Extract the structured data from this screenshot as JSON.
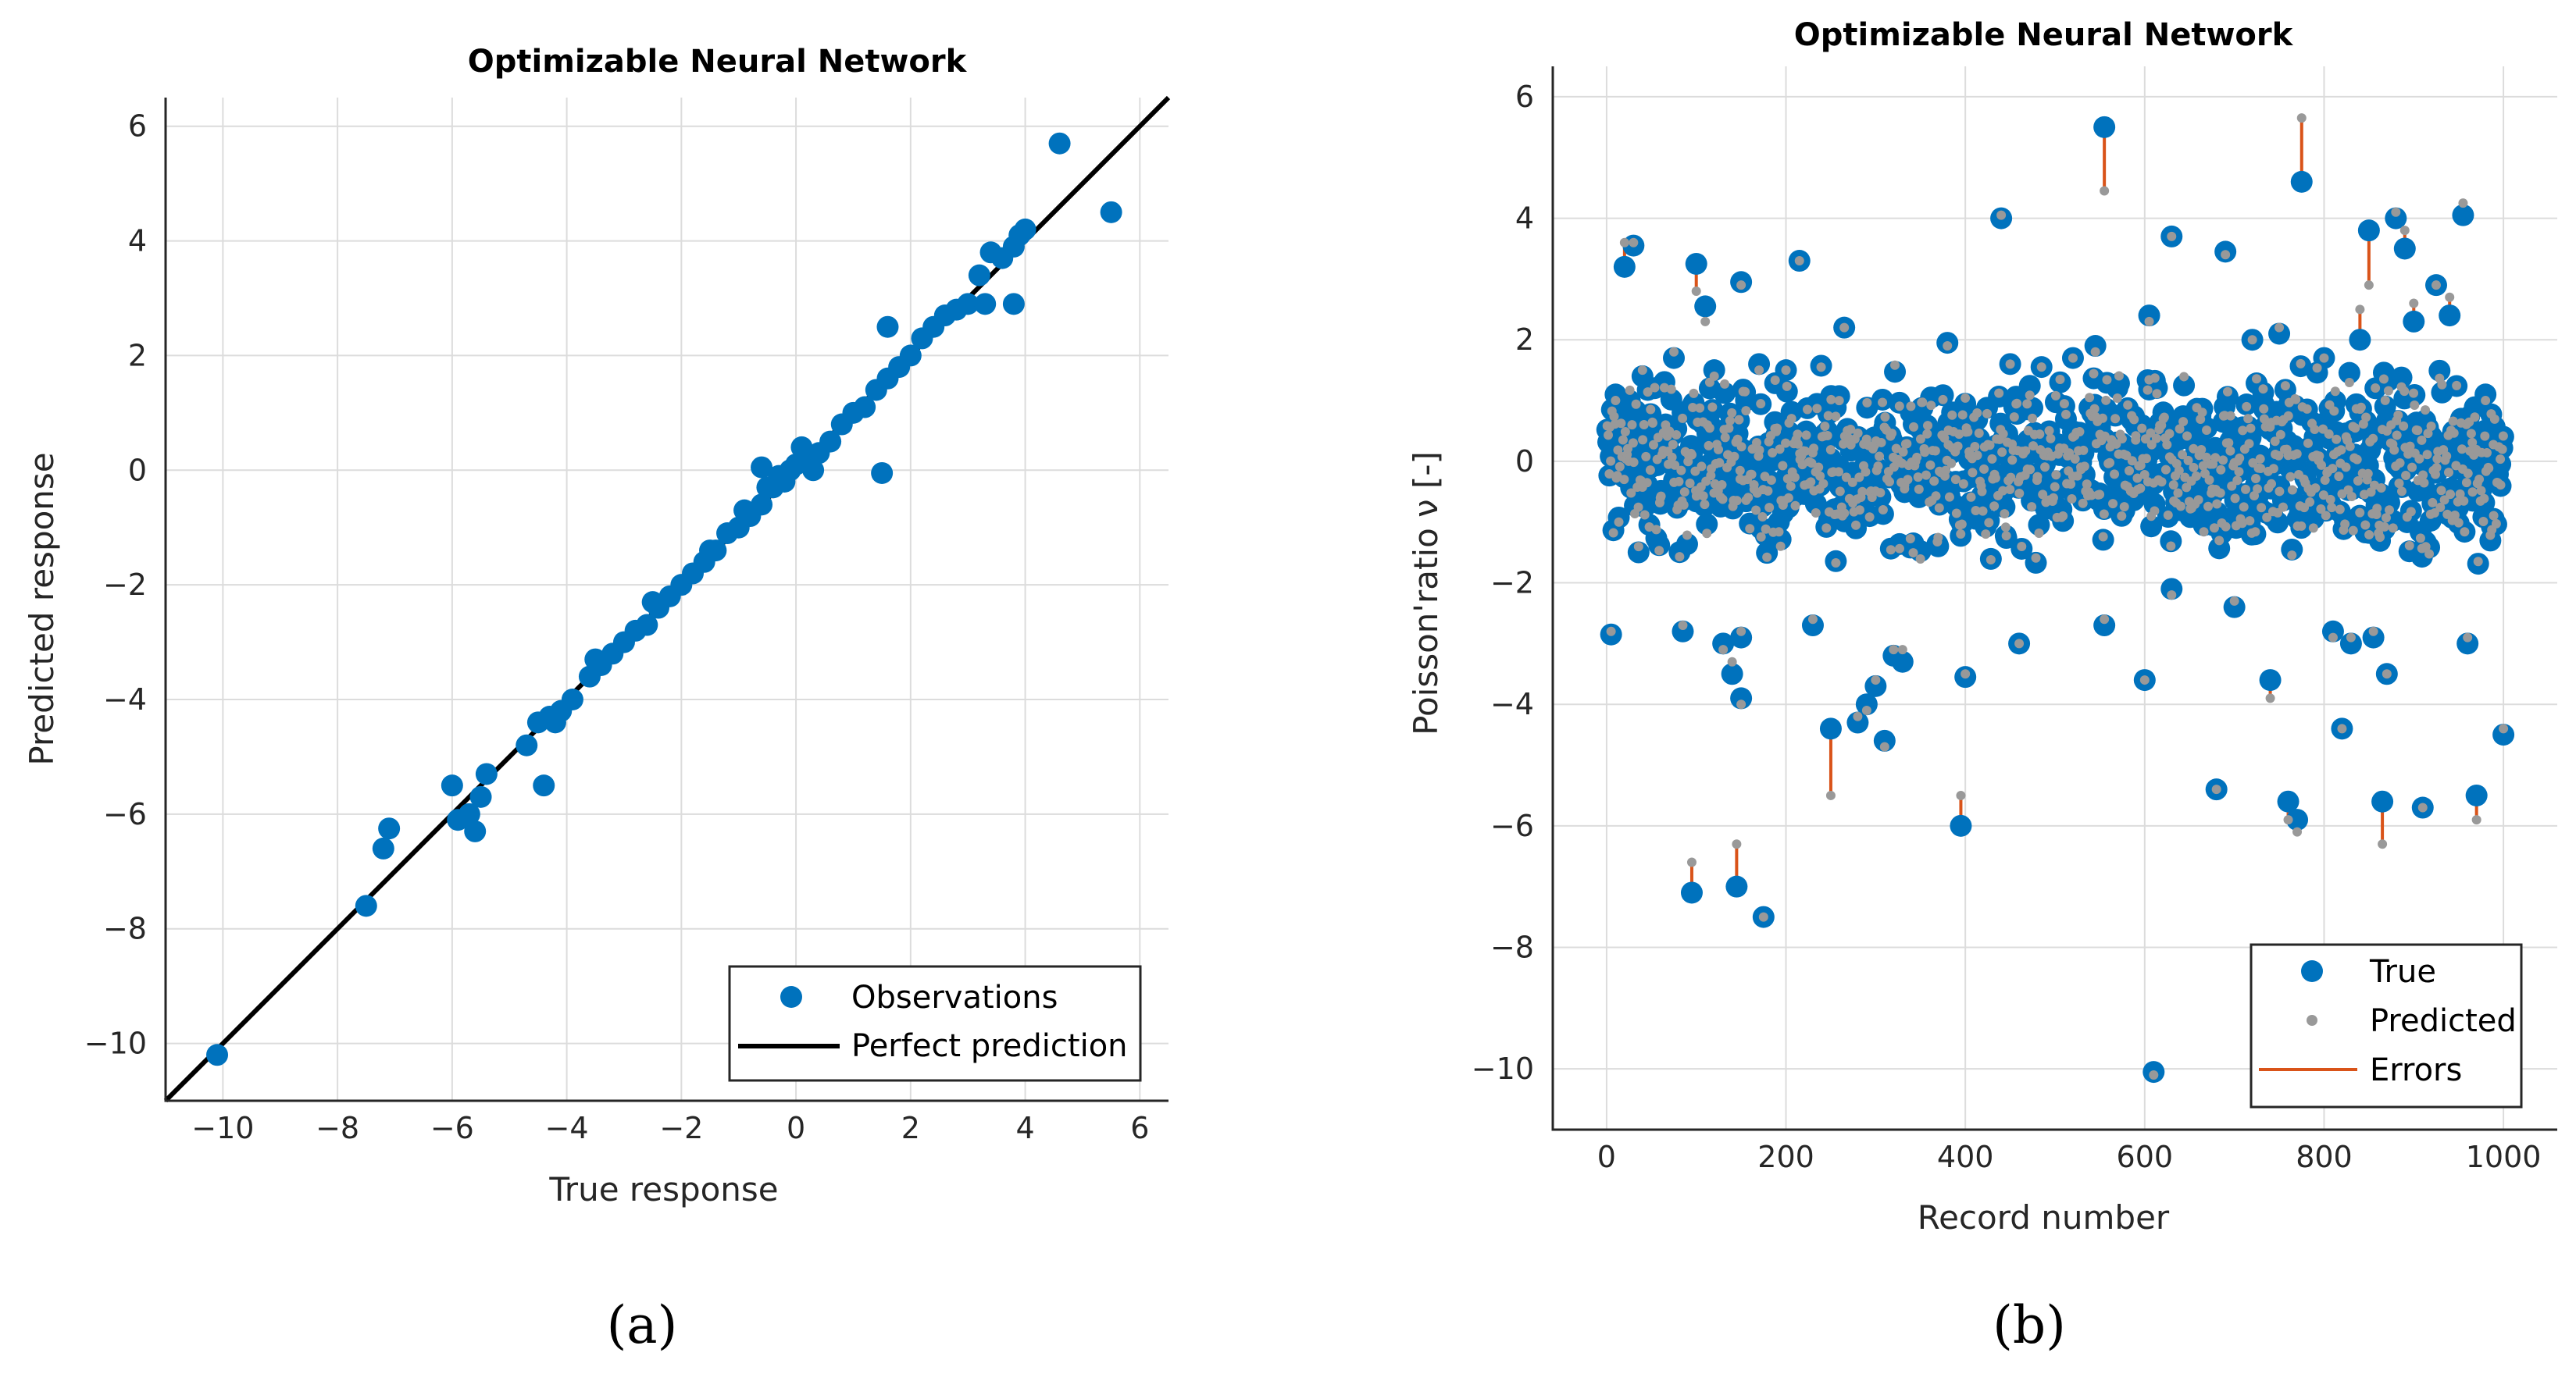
{
  "chart_data": [
    {
      "type": "scatter",
      "title": "Optimizable Neural Network",
      "xlabel": "True response",
      "ylabel": "Predicted response",
      "xlim": [
        -11,
        6.5
      ],
      "ylim": [
        -11,
        6.5
      ],
      "xticks": [
        -10,
        -8,
        -6,
        -4,
        -2,
        0,
        2,
        4,
        6
      ],
      "yticks": [
        -10,
        -8,
        -6,
        -4,
        -2,
        0,
        2,
        4,
        6
      ],
      "xtick_labels": [
        "−10",
        "−8",
        "−6",
        "−4",
        "−2",
        "0",
        "2",
        "4",
        "6"
      ],
      "ytick_labels": [
        "−10",
        "−8",
        "−6",
        "−4",
        "−2",
        "0",
        "2",
        "4",
        "6"
      ],
      "grid": true,
      "legend_position": "bottom-right",
      "legend": [
        "Observations",
        "Perfect prediction"
      ],
      "caption": "(a)",
      "colors": {
        "observations": "#0072BD",
        "line": "#000000"
      },
      "series": [
        {
          "name": "Observations",
          "points": [
            [
              -10.1,
              -10.2
            ],
            [
              -7.5,
              -7.6
            ],
            [
              -7.2,
              -6.6
            ],
            [
              -7.1,
              -6.25
            ],
            [
              -6.0,
              -5.5
            ],
            [
              -5.9,
              -6.1
            ],
            [
              -5.7,
              -6.0
            ],
            [
              -5.6,
              -6.3
            ],
            [
              -5.5,
              -5.7
            ],
            [
              -5.4,
              -5.3
            ],
            [
              -4.7,
              -4.8
            ],
            [
              -4.5,
              -4.4
            ],
            [
              -4.4,
              -5.5
            ],
            [
              -4.3,
              -4.3
            ],
            [
              -4.1,
              -4.2
            ],
            [
              -3.9,
              -4.0
            ],
            [
              -3.6,
              -3.6
            ],
            [
              -3.4,
              -3.4
            ],
            [
              -3.2,
              -3.2
            ],
            [
              -3.0,
              -3.0
            ],
            [
              -2.8,
              -2.8
            ],
            [
              -2.6,
              -2.7
            ],
            [
              -2.4,
              -2.4
            ],
            [
              -2.2,
              -2.2
            ],
            [
              -2.0,
              -2.0
            ],
            [
              -1.8,
              -1.8
            ],
            [
              -1.6,
              -1.6
            ],
            [
              -1.4,
              -1.4
            ],
            [
              -1.2,
              -1.1
            ],
            [
              -1.0,
              -1.0
            ],
            [
              -0.8,
              -0.8
            ],
            [
              -0.6,
              -0.6
            ],
            [
              -0.4,
              -0.3
            ],
            [
              -0.2,
              -0.2
            ],
            [
              -0.1,
              0.0
            ],
            [
              0.0,
              0.1
            ],
            [
              0.2,
              0.2
            ],
            [
              0.4,
              0.3
            ],
            [
              0.6,
              0.5
            ],
            [
              0.8,
              0.8
            ],
            [
              -0.5,
              -0.3
            ],
            [
              -0.3,
              -0.1
            ],
            [
              -0.6,
              0.05
            ],
            [
              0.1,
              0.4
            ],
            [
              0.3,
              0.0
            ],
            [
              -0.9,
              -0.7
            ],
            [
              -1.5,
              -1.4
            ],
            [
              -2.5,
              -2.3
            ],
            [
              -3.5,
              -3.3
            ],
            [
              -4.2,
              -4.4
            ],
            [
              1.0,
              1.0
            ],
            [
              1.2,
              1.1
            ],
            [
              1.4,
              1.4
            ],
            [
              1.6,
              1.6
            ],
            [
              1.8,
              1.8
            ],
            [
              2.0,
              2.0
            ],
            [
              2.2,
              2.3
            ],
            [
              2.4,
              2.5
            ],
            [
              2.6,
              2.7
            ],
            [
              2.8,
              2.8
            ],
            [
              1.6,
              2.5
            ],
            [
              1.5,
              -0.05
            ],
            [
              3.0,
              2.9
            ],
            [
              3.2,
              3.4
            ],
            [
              3.3,
              2.9
            ],
            [
              3.4,
              3.8
            ],
            [
              3.6,
              3.7
            ],
            [
              3.8,
              3.9
            ],
            [
              3.9,
              4.1
            ],
            [
              4.0,
              4.2
            ],
            [
              3.8,
              2.9
            ],
            [
              4.6,
              5.7
            ],
            [
              5.5,
              4.5
            ]
          ]
        },
        {
          "name": "Perfect prediction",
          "points": [
            [
              -11,
              -11
            ],
            [
              6.5,
              6.5
            ]
          ]
        }
      ]
    },
    {
      "type": "scatter",
      "title": "Optimizable Neural Network",
      "xlabel": "Record number",
      "ylabel": "Poisson'ratio ν [-]",
      "xlim": [
        -60,
        1060
      ],
      "ylim": [
        -11,
        6.5
      ],
      "xticks": [
        0,
        200,
        400,
        600,
        800,
        1000
      ],
      "yticks": [
        -10,
        -8,
        -6,
        -4,
        -2,
        0,
        2,
        4,
        6
      ],
      "xtick_labels": [
        "0",
        "200",
        "400",
        "600",
        "800",
        "1000"
      ],
      "ytick_labels": [
        "−10",
        "−8",
        "−6",
        "−4",
        "−2",
        "0",
        "2",
        "4",
        "6"
      ],
      "grid": true,
      "legend_position": "bottom-right",
      "legend": [
        "True",
        "Predicted",
        "Errors"
      ],
      "caption": "(b)",
      "colors": {
        "true": "#0072BD",
        "predicted": "#999999",
        "errors": "#D95319"
      },
      "series": [
        {
          "name": "True / Predicted (record, true, predicted)",
          "points": [
            [
              5,
              -2.85,
              -2.8
            ],
            [
              10,
              1.1,
              1.0
            ],
            [
              20,
              3.2,
              3.6
            ],
            [
              30,
              3.55,
              3.6
            ],
            [
              40,
              1.4,
              1.5
            ],
            [
              60,
              -0.7,
              -0.6
            ],
            [
              75,
              1.7,
              1.8
            ],
            [
              85,
              -2.8,
              -2.7
            ],
            [
              95,
              -7.1,
              -6.6
            ],
            [
              100,
              3.25,
              2.8
            ],
            [
              110,
              2.55,
              2.3
            ],
            [
              115,
              1.2,
              1.3
            ],
            [
              120,
              1.5,
              1.4
            ],
            [
              130,
              -3.0,
              -3.1
            ],
            [
              140,
              -3.5,
              -3.3
            ],
            [
              145,
              -7.0,
              -6.3
            ],
            [
              150,
              -2.9,
              -2.8
            ],
            [
              150,
              2.95,
              2.9
            ],
            [
              150,
              -3.9,
              -4.0
            ],
            [
              170,
              1.6,
              1.5
            ],
            [
              175,
              -7.5,
              -7.5
            ],
            [
              200,
              1.5,
              1.5
            ],
            [
              215,
              3.3,
              3.3
            ],
            [
              230,
              -2.7,
              -2.6
            ],
            [
              250,
              -4.4,
              -5.5
            ],
            [
              265,
              2.2,
              2.2
            ],
            [
              280,
              -4.3,
              -4.2
            ],
            [
              290,
              -4.0,
              -4.1
            ],
            [
              300,
              -3.7,
              -3.6
            ],
            [
              310,
              -4.6,
              -4.7
            ],
            [
              320,
              -3.2,
              -3.1
            ],
            [
              330,
              -3.3,
              -3.1
            ],
            [
              380,
              1.95,
              1.9
            ],
            [
              395,
              -6.0,
              -5.5
            ],
            [
              400,
              -3.55,
              -3.5
            ],
            [
              440,
              4.0,
              4.05
            ],
            [
              450,
              1.6,
              1.6
            ],
            [
              460,
              -3.0,
              -3.0
            ],
            [
              520,
              1.7,
              1.7
            ],
            [
              545,
              1.9,
              1.8
            ],
            [
              555,
              5.5,
              4.45
            ],
            [
              555,
              -2.7,
              -2.6
            ],
            [
              600,
              -3.6,
              -3.6
            ],
            [
              605,
              2.4,
              2.3
            ],
            [
              610,
              -10.05,
              -10.1
            ],
            [
              630,
              3.7,
              3.7
            ],
            [
              630,
              -2.1,
              -2.2
            ],
            [
              680,
              -5.4,
              -5.4
            ],
            [
              690,
              3.45,
              3.4
            ],
            [
              700,
              -2.4,
              -2.3
            ],
            [
              720,
              2.0,
              2.0
            ],
            [
              740,
              -3.6,
              -3.9
            ],
            [
              750,
              2.1,
              2.2
            ],
            [
              760,
              -5.6,
              -5.9
            ],
            [
              770,
              -5.9,
              -6.1
            ],
            [
              775,
              4.6,
              5.65
            ],
            [
              800,
              1.7,
              1.7
            ],
            [
              810,
              -2.8,
              -2.9
            ],
            [
              820,
              -4.4,
              -4.4
            ],
            [
              830,
              -3.0,
              -2.9
            ],
            [
              840,
              2.0,
              2.5
            ],
            [
              850,
              3.8,
              2.9
            ],
            [
              855,
              -2.9,
              -2.8
            ],
            [
              865,
              -5.6,
              -6.3
            ],
            [
              870,
              -3.5,
              -3.5
            ],
            [
              880,
              4.0,
              4.1
            ],
            [
              890,
              3.5,
              3.8
            ],
            [
              900,
              2.3,
              2.6
            ],
            [
              910,
              -5.7,
              -5.7
            ],
            [
              925,
              2.9,
              2.9
            ],
            [
              940,
              2.4,
              2.7
            ],
            [
              955,
              4.05,
              4.25
            ],
            [
              960,
              -3.0,
              -2.9
            ],
            [
              970,
              -5.5,
              -5.9
            ],
            [
              980,
              1.1,
              1.0
            ],
            [
              1000,
              -4.5,
              -4.4
            ]
          ]
        }
      ],
      "dense_band": {
        "y_range": [
          -2.0,
          1.8
        ],
        "center": 0,
        "count": 900
      }
    }
  ]
}
